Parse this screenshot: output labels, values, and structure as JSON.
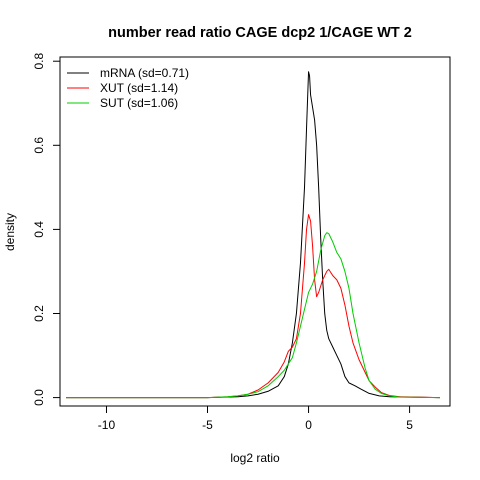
{
  "chart_data": {
    "type": "line",
    "title": "number read ratio CAGE dcp2 1/CAGE WT 2",
    "xlabel": "log2 ratio",
    "ylabel": "density",
    "xlim": [
      -12.3,
      7.0
    ],
    "ylim": [
      -0.02,
      0.81
    ],
    "xticks": [
      -10,
      -5,
      0,
      5
    ],
    "yticks": [
      0.0,
      0.2,
      0.4,
      0.6,
      0.8
    ],
    "xtick_labels": [
      "-10",
      "-5",
      "0",
      "5"
    ],
    "ytick_labels": [
      "0.0",
      "0.2",
      "0.4",
      "0.6",
      "0.8"
    ],
    "grid": false,
    "legend_position": "top-left",
    "series": [
      {
        "name": "mRNA (sd=0.71)",
        "color": "#000000",
        "points": [
          [
            -12,
            0
          ],
          [
            -5,
            0
          ],
          [
            -3.5,
            0.002
          ],
          [
            -3,
            0.004
          ],
          [
            -2.5,
            0.008
          ],
          [
            -2,
            0.015
          ],
          [
            -1.5,
            0.028
          ],
          [
            -1.2,
            0.05
          ],
          [
            -1,
            0.08
          ],
          [
            -0.8,
            0.13
          ],
          [
            -0.6,
            0.2
          ],
          [
            -0.4,
            0.32
          ],
          [
            -0.2,
            0.5
          ],
          [
            -0.1,
            0.64
          ],
          [
            0,
            0.775
          ],
          [
            0.05,
            0.765
          ],
          [
            0.1,
            0.72
          ],
          [
            0.2,
            0.69
          ],
          [
            0.3,
            0.66
          ],
          [
            0.4,
            0.6
          ],
          [
            0.5,
            0.5
          ],
          [
            0.6,
            0.38
          ],
          [
            0.7,
            0.28
          ],
          [
            0.8,
            0.2
          ],
          [
            0.9,
            0.16
          ],
          [
            1,
            0.14
          ],
          [
            1.2,
            0.12
          ],
          [
            1.4,
            0.1
          ],
          [
            1.6,
            0.08
          ],
          [
            1.8,
            0.05
          ],
          [
            2,
            0.035
          ],
          [
            2.3,
            0.028
          ],
          [
            2.6,
            0.02
          ],
          [
            3,
            0.01
          ],
          [
            3.5,
            0.004
          ],
          [
            4,
            0.002
          ],
          [
            6.5,
            0
          ]
        ]
      },
      {
        "name": "XUT (sd=1.14)",
        "color": "#ff0000",
        "points": [
          [
            -12,
            0
          ],
          [
            -5,
            0
          ],
          [
            -4,
            0.002
          ],
          [
            -3.5,
            0.004
          ],
          [
            -3,
            0.008
          ],
          [
            -2.5,
            0.018
          ],
          [
            -2,
            0.035
          ],
          [
            -1.5,
            0.06
          ],
          [
            -1.2,
            0.085
          ],
          [
            -1,
            0.11
          ],
          [
            -0.8,
            0.12
          ],
          [
            -0.6,
            0.14
          ],
          [
            -0.4,
            0.2
          ],
          [
            -0.2,
            0.32
          ],
          [
            -0.1,
            0.4
          ],
          [
            0,
            0.435
          ],
          [
            0.1,
            0.42
          ],
          [
            0.2,
            0.36
          ],
          [
            0.3,
            0.28
          ],
          [
            0.4,
            0.24
          ],
          [
            0.5,
            0.25
          ],
          [
            0.7,
            0.28
          ],
          [
            0.9,
            0.3
          ],
          [
            1,
            0.305
          ],
          [
            1.2,
            0.29
          ],
          [
            1.4,
            0.28
          ],
          [
            1.6,
            0.26
          ],
          [
            1.8,
            0.22
          ],
          [
            2,
            0.17
          ],
          [
            2.2,
            0.13
          ],
          [
            2.5,
            0.09
          ],
          [
            2.8,
            0.06
          ],
          [
            3,
            0.04
          ],
          [
            3.3,
            0.025
          ],
          [
            3.6,
            0.012
          ],
          [
            4,
            0.005
          ],
          [
            4.5,
            0.002
          ],
          [
            6.5,
            0
          ]
        ]
      },
      {
        "name": "SUT (sd=1.06)",
        "color": "#00cc00",
        "points": [
          [
            -12,
            0
          ],
          [
            -5,
            0
          ],
          [
            -4,
            0.002
          ],
          [
            -3.5,
            0.004
          ],
          [
            -3,
            0.008
          ],
          [
            -2.5,
            0.014
          ],
          [
            -2,
            0.028
          ],
          [
            -1.5,
            0.05
          ],
          [
            -1.2,
            0.065
          ],
          [
            -1,
            0.08
          ],
          [
            -0.8,
            0.095
          ],
          [
            -0.6,
            0.13
          ],
          [
            -0.4,
            0.17
          ],
          [
            -0.2,
            0.21
          ],
          [
            0,
            0.25
          ],
          [
            0.2,
            0.27
          ],
          [
            0.4,
            0.3
          ],
          [
            0.6,
            0.35
          ],
          [
            0.8,
            0.385
          ],
          [
            0.9,
            0.392
          ],
          [
            1,
            0.39
          ],
          [
            1.2,
            0.37
          ],
          [
            1.4,
            0.345
          ],
          [
            1.6,
            0.33
          ],
          [
            1.8,
            0.3
          ],
          [
            2,
            0.26
          ],
          [
            2.2,
            0.2
          ],
          [
            2.5,
            0.13
          ],
          [
            2.8,
            0.07
          ],
          [
            3,
            0.04
          ],
          [
            3.3,
            0.02
          ],
          [
            3.6,
            0.01
          ],
          [
            4,
            0.004
          ],
          [
            4.5,
            0.001
          ],
          [
            6.5,
            0
          ]
        ]
      }
    ]
  }
}
